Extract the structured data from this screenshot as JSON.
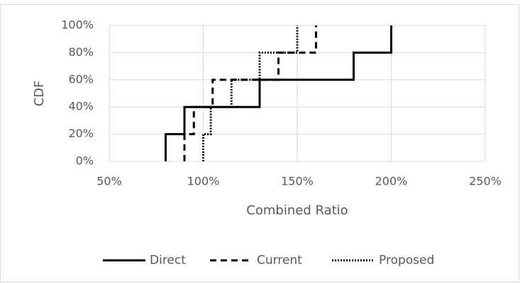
{
  "chart_data": {
    "type": "line",
    "step": true,
    "x_label": "Combined Ratio",
    "y_label": "CDF",
    "xlim": [
      50,
      250
    ],
    "xticks": [
      {
        "value": 50,
        "label": "50%"
      },
      {
        "value": 100,
        "label": "100%"
      },
      {
        "value": 150,
        "label": "150%"
      },
      {
        "value": 200,
        "label": "200%"
      },
      {
        "value": 250,
        "label": "250%"
      }
    ],
    "ylim": [
      0,
      100
    ],
    "yticks": [
      {
        "value": 0,
        "label": "0%"
      },
      {
        "value": 20,
        "label": "20%"
      },
      {
        "value": 40,
        "label": "40%"
      },
      {
        "value": 60,
        "label": "60%"
      },
      {
        "value": 80,
        "label": "80%"
      },
      {
        "value": 100,
        "label": "100%"
      }
    ],
    "grid": true,
    "legend": "bottom",
    "series": [
      {
        "name": "Direct",
        "color": "#000000",
        "linestyle": "solid",
        "x": [
          80,
          90,
          130,
          180,
          200
        ],
        "values": [
          20,
          40,
          60,
          80,
          100
        ]
      },
      {
        "name": "Current",
        "color": "#000000",
        "linestyle": "dashed",
        "x": [
          90,
          95,
          105,
          140,
          160
        ],
        "values": [
          20,
          40,
          60,
          80,
          100
        ]
      },
      {
        "name": "Proposed",
        "color": "#000000",
        "linestyle": "dotted",
        "x": [
          100,
          104,
          115,
          130,
          150
        ],
        "values": [
          20,
          40,
          60,
          80,
          100
        ]
      }
    ]
  }
}
